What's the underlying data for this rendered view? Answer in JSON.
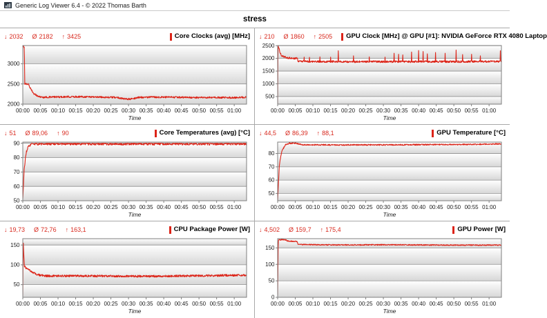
{
  "window": {
    "title": "Generic Log Viewer 6.4 - © 2022 Thomas Barth",
    "icon": "log-viewer-app-icon"
  },
  "header": {
    "label": "stress"
  },
  "stats_icons": {
    "min": "↓",
    "avg": "Ø",
    "max": "↑"
  },
  "colors": {
    "series": "#dc2317",
    "stats_text": "#d8281d",
    "legend_bar": "#dc2317",
    "grid_line": "#8f8f8f",
    "plot_border": "#7f7f7f",
    "band_top": "#ffffff",
    "band_bottom": "#d7d7d7",
    "panel_divider": "#a8a8a8"
  },
  "time_axis": {
    "label": "Time",
    "duration_min": 63.5,
    "tick_minutes": [
      0,
      5,
      10,
      15,
      20,
      25,
      30,
      35,
      40,
      45,
      50,
      55,
      60
    ],
    "ticks": [
      "00:00",
      "00:05",
      "00:10",
      "00:15",
      "00:20",
      "00:25",
      "00:30",
      "00:35",
      "00:40",
      "00:45",
      "00:50",
      "00:55",
      "01:00"
    ]
  },
  "charts": [
    {
      "id": "core-clocks",
      "type": "line",
      "title": "Core Clocks (avg) [MHz]",
      "min": "2032",
      "avg": "2182",
      "max": "3425",
      "y_ticks": [
        2000,
        2500,
        3000
      ],
      "y_min": 2000,
      "y_max": 3450,
      "noise": 22,
      "keypoints": [
        [
          0,
          3425
        ],
        [
          0.45,
          3415
        ],
        [
          0.55,
          2505
        ],
        [
          1.6,
          2495
        ],
        [
          2.0,
          2420
        ],
        [
          2.6,
          2320
        ],
        [
          3.2,
          2260
        ],
        [
          4.2,
          2200
        ],
        [
          5.5,
          2170
        ],
        [
          8,
          2175
        ],
        [
          12,
          2180
        ],
        [
          16,
          2185
        ],
        [
          20,
          2180
        ],
        [
          24,
          2170
        ],
        [
          27,
          2165
        ],
        [
          29,
          2125
        ],
        [
          31,
          2130
        ],
        [
          33,
          2170
        ],
        [
          38,
          2175
        ],
        [
          43,
          2170
        ],
        [
          48,
          2165
        ],
        [
          52,
          2160
        ],
        [
          56,
          2165
        ],
        [
          60,
          2160
        ],
        [
          63.5,
          2175
        ]
      ],
      "spikes": []
    },
    {
      "id": "gpu-clock",
      "type": "line",
      "title": "GPU Clock [MHz] @ GPU [#1]: NVIDIA GeForce RTX 4080 Laptop",
      "min": "210",
      "avg": "1860",
      "max": "2505",
      "y_ticks": [
        500,
        1000,
        1500,
        2000,
        2500
      ],
      "y_min": 200,
      "y_max": 2505,
      "noise": 38,
      "keypoints": [
        [
          0,
          210
        ],
        [
          0.1,
          2505
        ],
        [
          0.4,
          2380
        ],
        [
          0.8,
          2180
        ],
        [
          1.2,
          2100
        ],
        [
          1.8,
          2060
        ],
        [
          2.6,
          2030
        ],
        [
          3.5,
          2010
        ],
        [
          5.6,
          2000
        ],
        [
          5.75,
          1890
        ],
        [
          10,
          1875
        ],
        [
          20,
          1870
        ],
        [
          30,
          1868
        ],
        [
          40,
          1872
        ],
        [
          50,
          1870
        ],
        [
          63.5,
          1880
        ]
      ],
      "spikes": [
        [
          7.5,
          2050
        ],
        [
          9,
          2040
        ],
        [
          12,
          2060
        ],
        [
          15,
          2050
        ],
        [
          17.2,
          2300
        ],
        [
          21.5,
          2100
        ],
        [
          26,
          2060
        ],
        [
          30.5,
          2050
        ],
        [
          33,
          2200
        ],
        [
          34.3,
          2160
        ],
        [
          35.5,
          2140
        ],
        [
          38,
          2250
        ],
        [
          40,
          2310
        ],
        [
          41.3,
          2270
        ],
        [
          42.5,
          2180
        ],
        [
          44.8,
          2230
        ],
        [
          47.5,
          2200
        ],
        [
          50.6,
          2330
        ],
        [
          52.5,
          2150
        ],
        [
          55,
          2160
        ],
        [
          57.5,
          2100
        ],
        [
          63.2,
          2300
        ]
      ]
    },
    {
      "id": "core-temperatures",
      "type": "line",
      "title": "Core Temperatures (avg) [°C]",
      "min": "51",
      "avg": "89,06",
      "max": "90",
      "y_ticks": [
        50,
        60,
        70,
        80,
        90
      ],
      "y_min": 50,
      "y_max": 90.8,
      "clamp_max": 90,
      "noise": 0.9,
      "keypoints": [
        [
          0,
          51
        ],
        [
          0.4,
          72
        ],
        [
          0.9,
          83
        ],
        [
          1.6,
          88
        ],
        [
          2.4,
          89.3
        ],
        [
          3.5,
          89.6
        ],
        [
          63.5,
          89.6
        ]
      ],
      "spikes": []
    },
    {
      "id": "gpu-temperature",
      "type": "line",
      "title": "GPU Temperature [°C]",
      "min": "44,5",
      "avg": "86,39",
      "max": "88,1",
      "y_ticks": [
        50,
        60,
        70,
        80
      ],
      "y_min": 44.5,
      "y_max": 88.6,
      "clamp_max": 88.1,
      "noise": 0.45,
      "keypoints": [
        [
          0,
          44.5
        ],
        [
          0.5,
          72
        ],
        [
          1.2,
          82
        ],
        [
          2.2,
          86.5
        ],
        [
          3.2,
          87.6
        ],
        [
          5.0,
          87.9
        ],
        [
          6.0,
          87.2
        ],
        [
          7,
          86.6
        ],
        [
          15,
          86.5
        ],
        [
          30,
          86.5
        ],
        [
          45,
          86.7
        ],
        [
          55,
          86.9
        ],
        [
          63.5,
          87.3
        ]
      ],
      "spikes": []
    },
    {
      "id": "cpu-package-power",
      "type": "line",
      "title": "CPU Package Power [W]",
      "min": "19,73",
      "avg": "72,76",
      "max": "163,1",
      "y_ticks": [
        50,
        100,
        150
      ],
      "y_min": 18,
      "y_max": 166,
      "noise": 2.6,
      "keypoints": [
        [
          0,
          20
        ],
        [
          0.12,
          163
        ],
        [
          0.45,
          97
        ],
        [
          0.9,
          92
        ],
        [
          1.5,
          90
        ],
        [
          2.2,
          84
        ],
        [
          3,
          80
        ],
        [
          4,
          76
        ],
        [
          5,
          73.5
        ],
        [
          7,
          72
        ],
        [
          15,
          72
        ],
        [
          25,
          71.5
        ],
        [
          35,
          71
        ],
        [
          45,
          72
        ],
        [
          55,
          73
        ],
        [
          63.5,
          74
        ]
      ],
      "spikes": []
    },
    {
      "id": "gpu-power",
      "type": "line",
      "title": "GPU Power [W]",
      "min": "4,502",
      "avg": "159,7",
      "max": "175,4",
      "y_ticks": [
        0,
        50,
        100,
        150
      ],
      "y_min": 0,
      "y_max": 178,
      "noise": 1.6,
      "keypoints": [
        [
          0,
          4.5
        ],
        [
          0.18,
          173.5
        ],
        [
          0.5,
          174.5
        ],
        [
          2.4,
          174.5
        ],
        [
          2.7,
          171
        ],
        [
          5.5,
          169.5
        ],
        [
          5.8,
          160.5
        ],
        [
          10,
          159.5
        ],
        [
          20,
          159
        ],
        [
          30,
          159.5
        ],
        [
          40,
          159
        ],
        [
          50,
          158.5
        ],
        [
          63.5,
          158.5
        ]
      ],
      "spikes": []
    }
  ]
}
